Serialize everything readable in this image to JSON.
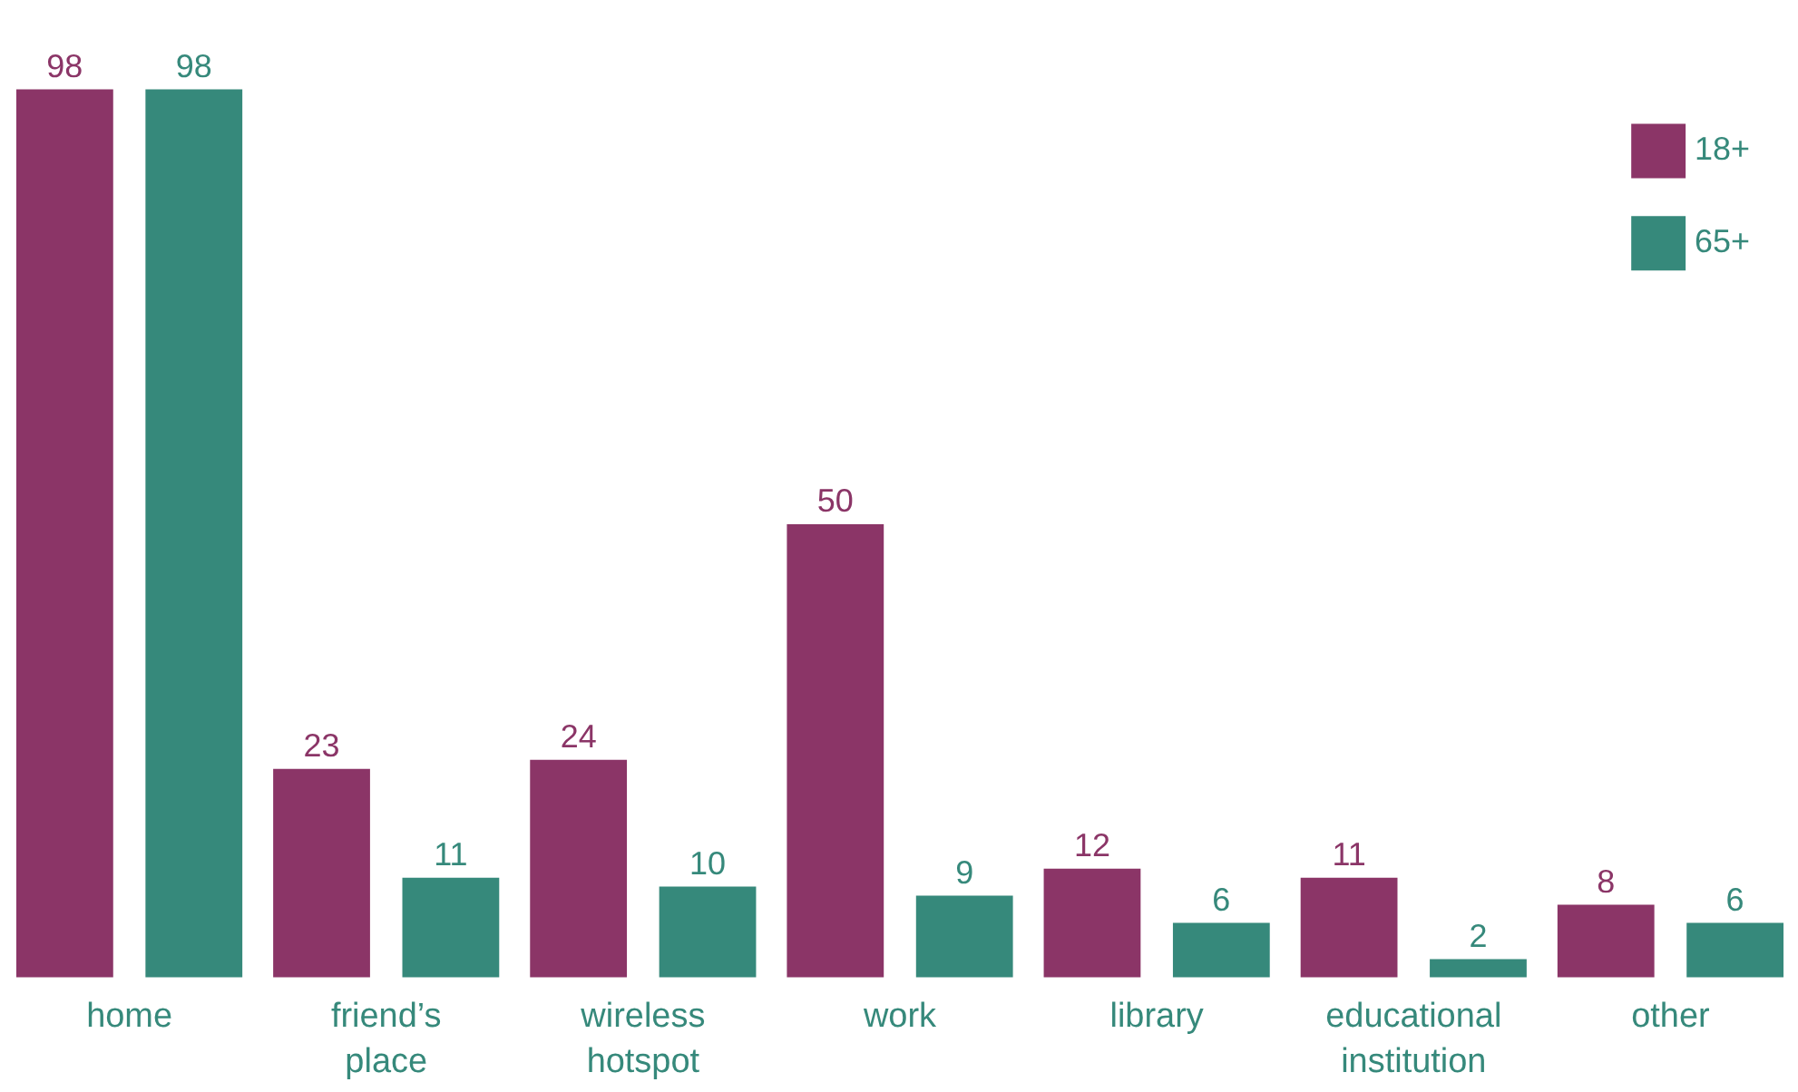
{
  "chart_data": {
    "type": "bar",
    "categories": [
      "home",
      "friend’s place",
      "wireless hotspot",
      "work",
      "library",
      "educational institution",
      "other"
    ],
    "series": [
      {
        "name": "18+",
        "color": "#8b3567",
        "values": [
          98,
          23,
          24,
          50,
          12,
          11,
          8
        ]
      },
      {
        "name": "65+",
        "color": "#36897b",
        "values": [
          98,
          11,
          10,
          9,
          6,
          2,
          6
        ]
      }
    ],
    "data_labels": true,
    "legend": "top right",
    "grid": false
  }
}
